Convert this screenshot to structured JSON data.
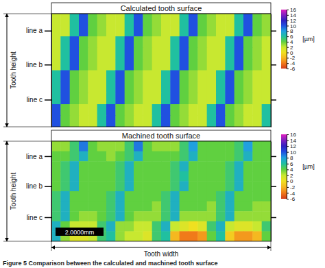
{
  "chart_data": [
    {
      "type": "heatmap",
      "title": "Calculated tooth surface",
      "ylabel": "Tooth height",
      "xlim": [
        0,
        24
      ],
      "ylim": [
        0,
        10
      ],
      "yticks": [
        {
          "value": 1.5,
          "label": "line a"
        },
        {
          "value": 4.5,
          "label": "line b"
        },
        {
          "value": 7.6,
          "label": "line c"
        }
      ],
      "z": [
        [
          2,
          2,
          6,
          10,
          4,
          3,
          2,
          2,
          6,
          10,
          4,
          3,
          2,
          2,
          6,
          10,
          4,
          3,
          2,
          2,
          6,
          10,
          4,
          3
        ],
        [
          2,
          2,
          6,
          10,
          4,
          3,
          2,
          2,
          6,
          10,
          4,
          3,
          2,
          2,
          6,
          10,
          4,
          3,
          2,
          2,
          6,
          10,
          4,
          3
        ],
        [
          2,
          6,
          10,
          4,
          3,
          2,
          2,
          6,
          10,
          4,
          3,
          2,
          2,
          6,
          10,
          4,
          3,
          2,
          2,
          6,
          10,
          4,
          3,
          2
        ],
        [
          2,
          6,
          10,
          4,
          3,
          2,
          2,
          6,
          10,
          4,
          3,
          2,
          2,
          6,
          10,
          4,
          3,
          2,
          2,
          6,
          10,
          4,
          3,
          2
        ],
        [
          2,
          6,
          10,
          4,
          3,
          2,
          2,
          6,
          10,
          4,
          3,
          2,
          2,
          6,
          10,
          4,
          3,
          2,
          2,
          6,
          10,
          4,
          3,
          2
        ],
        [
          6,
          10,
          4,
          3,
          2,
          2,
          6,
          10,
          4,
          3,
          2,
          2,
          6,
          10,
          4,
          3,
          2,
          2,
          6,
          10,
          4,
          3,
          2,
          2
        ],
        [
          6,
          10,
          4,
          3,
          2,
          2,
          6,
          10,
          4,
          3,
          2,
          2,
          6,
          10,
          4,
          3,
          2,
          2,
          6,
          10,
          4,
          3,
          2,
          2
        ],
        [
          6,
          10,
          4,
          3,
          2,
          2,
          6,
          10,
          4,
          3,
          2,
          2,
          6,
          10,
          4,
          3,
          2,
          2,
          6,
          10,
          4,
          3,
          2,
          2
        ],
        [
          10,
          4,
          3,
          2,
          2,
          6,
          10,
          4,
          3,
          2,
          2,
          6,
          10,
          4,
          3,
          2,
          2,
          6,
          10,
          4,
          3,
          2,
          2,
          6
        ],
        [
          10,
          4,
          3,
          2,
          2,
          6,
          10,
          4,
          3,
          2,
          2,
          6,
          10,
          4,
          3,
          2,
          2,
          6,
          10,
          4,
          3,
          2,
          2,
          6
        ]
      ],
      "colorbar": {
        "range": [
          -6,
          16
        ],
        "ticks": [
          16,
          14,
          12,
          10,
          8,
          6,
          4,
          2,
          0,
          -2,
          -4,
          -6
        ],
        "label": "[µm]"
      }
    },
    {
      "type": "heatmap",
      "title": "Machined tooth surface",
      "ylabel": "Tooth height",
      "xlabel": "Tooth width",
      "xlim": [
        0,
        24
      ],
      "ylim": [
        0,
        10
      ],
      "yticks": [
        {
          "value": 1.5,
          "label": "line a"
        },
        {
          "value": 4.5,
          "label": "line b"
        },
        {
          "value": 7.6,
          "label": "line c"
        }
      ],
      "z": [
        [
          3,
          3,
          5,
          9,
          4,
          3,
          3,
          3,
          5,
          9,
          4,
          3,
          3,
          3,
          5,
          8,
          4,
          4,
          4,
          4,
          5,
          8,
          4,
          4
        ],
        [
          4,
          4,
          5,
          7,
          4,
          4,
          3,
          4,
          5,
          7,
          4,
          4,
          4,
          4,
          5,
          7,
          4,
          4,
          4,
          4,
          5,
          7,
          4,
          4
        ],
        [
          4,
          5,
          7,
          4,
          4,
          4,
          4,
          5,
          7,
          4,
          4,
          4,
          4,
          5,
          7,
          4,
          4,
          4,
          4,
          5,
          7,
          4,
          4,
          4
        ],
        [
          4,
          5,
          7,
          4,
          4,
          4,
          4,
          5,
          7,
          4,
          4,
          4,
          4,
          5,
          6,
          4,
          4,
          4,
          4,
          5,
          7,
          4,
          4,
          4
        ],
        [
          4,
          5,
          7,
          4,
          4,
          4,
          4,
          5,
          7,
          4,
          4,
          4,
          4,
          5,
          7,
          4,
          4,
          4,
          4,
          5,
          7,
          4,
          4,
          4
        ],
        [
          5,
          7,
          4,
          4,
          4,
          4,
          5,
          7,
          4,
          4,
          4,
          4,
          5,
          7,
          4,
          4,
          4,
          4,
          5,
          7,
          4,
          4,
          4,
          4
        ],
        [
          5,
          7,
          4,
          4,
          4,
          4,
          5,
          7,
          4,
          4,
          4,
          3,
          5,
          7,
          4,
          4,
          4,
          3,
          5,
          7,
          4,
          4,
          3,
          3
        ],
        [
          5,
          7,
          4,
          3,
          3,
          4,
          5,
          7,
          4,
          3,
          3,
          3,
          5,
          7,
          3,
          3,
          3,
          3,
          5,
          7,
          3,
          3,
          3,
          3
        ],
        [
          7,
          4,
          2,
          2,
          2,
          5,
          7,
          3,
          3,
          2,
          2,
          5,
          7,
          2,
          1,
          0,
          1,
          5,
          7,
          2,
          1,
          1,
          2,
          5
        ],
        [
          7,
          3,
          1,
          1,
          2,
          5,
          6,
          3,
          2,
          2,
          1,
          5,
          6,
          -2,
          -4,
          -4,
          -3,
          4,
          6,
          -1,
          -3,
          -3,
          -2,
          4
        ]
      ],
      "colorbar": {
        "range": [
          -6,
          16
        ],
        "ticks": [
          16,
          14,
          12,
          10,
          8,
          6,
          4,
          2,
          0,
          -2,
          -4,
          -6
        ],
        "label": "[µm]"
      },
      "annotations": [
        "2.0000mm"
      ]
    }
  ],
  "caption": "Figure 5   Comparison between the calculated and machined tooth surface"
}
